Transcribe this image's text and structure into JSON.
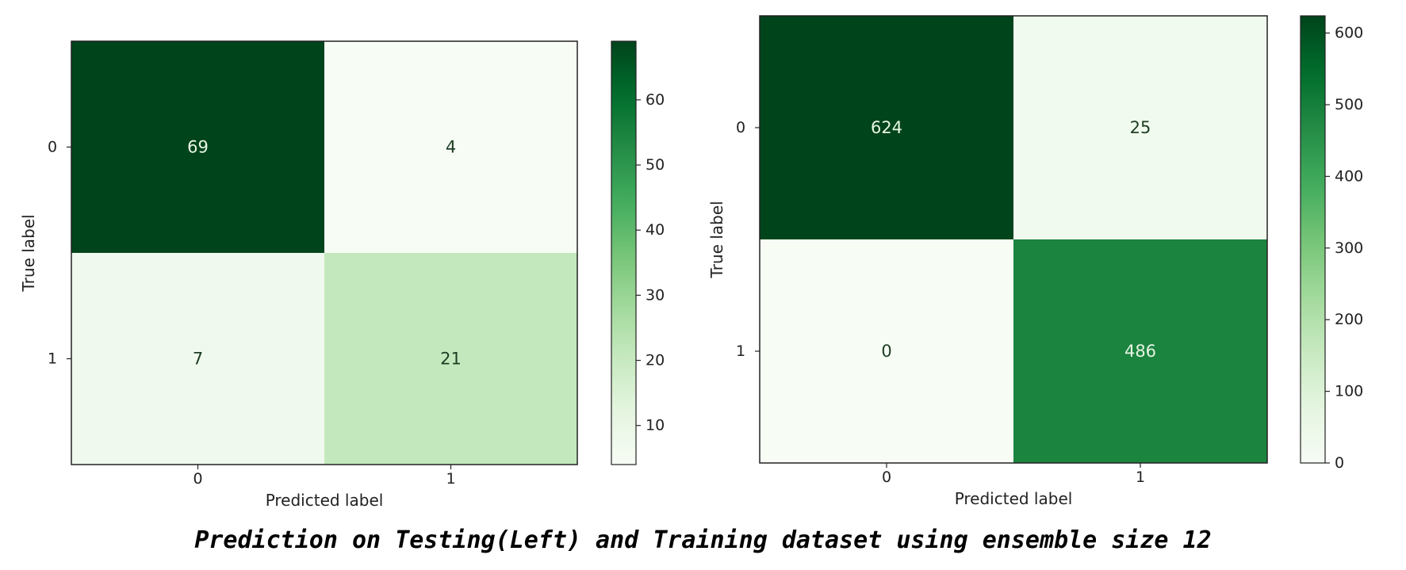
{
  "caption": "Prediction on Testing(Left) and Training dataset using ensemble size 12",
  "chart_data": [
    {
      "type": "heatmap",
      "colormap": "Greens",
      "xlabel": "Predicted label",
      "ylabel": "True label",
      "x_categories": [
        "0",
        "1"
      ],
      "y_categories": [
        "0",
        "1"
      ],
      "matrix": [
        [
          69,
          4
        ],
        [
          7,
          21
        ]
      ],
      "colorbar": {
        "min": 4,
        "max": 69,
        "ticks": [
          10,
          20,
          30,
          40,
          50,
          60
        ]
      }
    },
    {
      "type": "heatmap",
      "colormap": "Greens",
      "xlabel": "Predicted label",
      "ylabel": "True label",
      "x_categories": [
        "0",
        "1"
      ],
      "y_categories": [
        "0",
        "1"
      ],
      "matrix": [
        [
          624,
          25
        ],
        [
          0,
          486
        ]
      ],
      "colorbar": {
        "min": 0,
        "max": 624,
        "ticks": [
          0,
          100,
          200,
          300,
          400,
          500,
          600
        ]
      }
    }
  ]
}
